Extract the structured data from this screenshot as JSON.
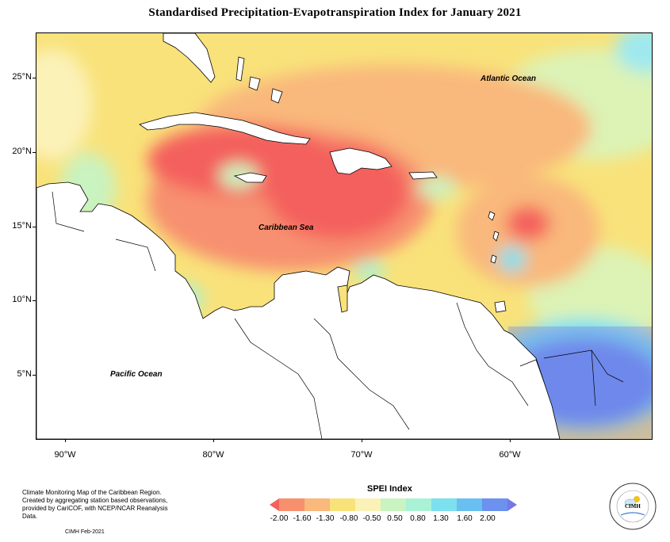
{
  "title": "Standardised Precipitation-Evapotranspiration Index for January 2021",
  "map": {
    "lat_labels": [
      "25°N",
      "20°N",
      "15°N",
      "10°N",
      "5°N"
    ],
    "lon_labels": [
      "90°W",
      "80°W",
      "70°W",
      "60°W"
    ],
    "regions": {
      "atlantic": "Atlantic Ocean",
      "caribbean": "Caribbean Sea",
      "pacific": "Pacific Ocean"
    }
  },
  "legend": {
    "title": "SPEI Index",
    "ticks": [
      "-2.00",
      "-1.60",
      "-1.30",
      "-0.80",
      "-0.50",
      "0.50",
      "0.80",
      "1.30",
      "1.60",
      "2.00"
    ],
    "colors": [
      "#f4615d",
      "#f7906f",
      "#f9b87c",
      "#f9e27a",
      "#fbf2b8",
      "#c9f3c0",
      "#a9f2d6",
      "#7ce0ef",
      "#69c0f0",
      "#6c91ee",
      "#7677e6"
    ]
  },
  "credit": {
    "lines": [
      "Climate Monitoring Map of the Caribbean Region.",
      "Created by aggregating station based observations,",
      "provided by CariCOF, with NCEP/NCAR Reanalysis Data."
    ],
    "date": "CIMH Feb-2021"
  },
  "logo": {
    "text": "CIMH"
  }
}
